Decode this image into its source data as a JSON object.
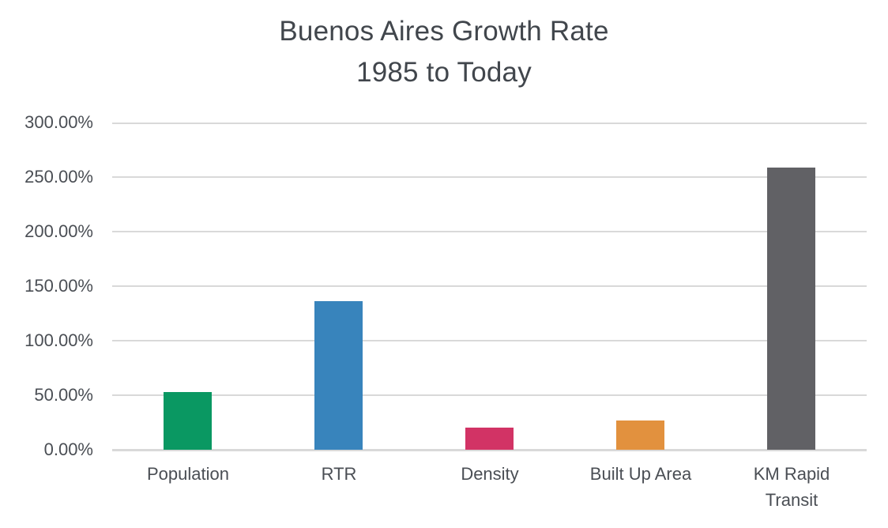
{
  "title": {
    "line1": "Buenos Aires Growth Rate",
    "line2": "1985 to Today"
  },
  "chart_data": {
    "type": "bar",
    "title": "Buenos Aires Growth Rate 1985 to Today",
    "categories": [
      "Population",
      "RTR",
      "Density",
      "Built Up Area",
      "KM Rapid Transit"
    ],
    "values": [
      53,
      136,
      20,
      27,
      259
    ],
    "value_unit": "percent",
    "bar_colors": [
      "#0a9862",
      "#3884bc",
      "#d23365",
      "#e2913e",
      "#616165"
    ],
    "xlabel": "",
    "ylabel": "",
    "ylim": [
      0,
      300
    ],
    "y_ticks": [
      0,
      50,
      100,
      150,
      200,
      250,
      300
    ],
    "y_tick_labels": [
      "0.00%",
      "50.00%",
      "100.00%",
      "150.00%",
      "200.00%",
      "250.00%",
      "300.00%"
    ],
    "grid": "horizontal",
    "legend": "none",
    "background_color": "#ffffff",
    "gridline_color": "#d9d9d9",
    "text_color": "#4a4e54",
    "title_color": "#41464c"
  }
}
